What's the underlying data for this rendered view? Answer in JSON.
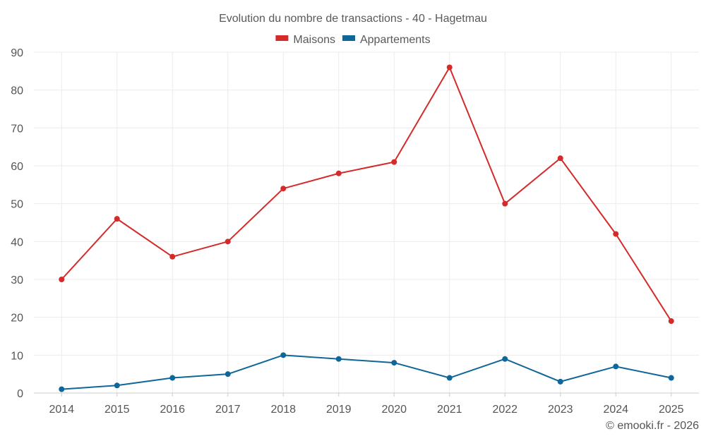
{
  "chart_data": {
    "type": "line",
    "title": "Evolution du nombre de transactions - 40 - Hagetmau",
    "xlabel": "",
    "ylabel": "",
    "ylim": [
      0,
      90
    ],
    "yticks": [
      0,
      10,
      20,
      30,
      40,
      50,
      60,
      70,
      80,
      90
    ],
    "grid": true,
    "legend_position": "top-center",
    "categories": [
      "2014",
      "2015",
      "2016",
      "2017",
      "2018",
      "2019",
      "2020",
      "2021",
      "2022",
      "2023",
      "2024",
      "2025"
    ],
    "series": [
      {
        "name": "Maisons",
        "color": "#d42a2a",
        "values": [
          30,
          46,
          36,
          40,
          54,
          58,
          61,
          86,
          50,
          62,
          42,
          19
        ]
      },
      {
        "name": "Appartements",
        "color": "#0f6698",
        "values": [
          1,
          2,
          4,
          5,
          10,
          9,
          8,
          4,
          9,
          3,
          7,
          4
        ]
      }
    ]
  },
  "footer": {
    "copyright": "© emooki.fr - 2026"
  }
}
